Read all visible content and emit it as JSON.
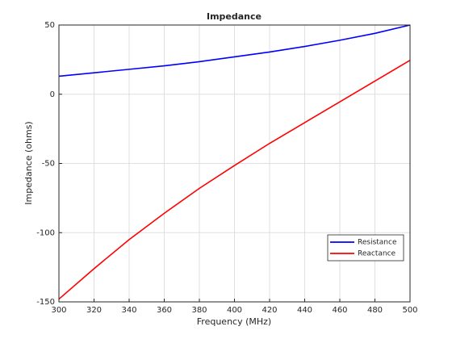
{
  "chart_data": {
    "type": "line",
    "title": "Impedance",
    "x_label": "Frequency (MHz)",
    "y_label": "Impedance (ohms)",
    "x": [
      300,
      320,
      340,
      360,
      380,
      400,
      420,
      440,
      460,
      480,
      500
    ],
    "series": [
      {
        "name": "Resistance",
        "color": "#0000ff",
        "values": [
          13,
          15.5,
          18,
          20.5,
          23.5,
          27,
          30.5,
          34.5,
          39,
          44,
          50
        ]
      },
      {
        "name": "Reactance",
        "color": "#ff0000",
        "values": [
          -148,
          -126,
          -105,
          -86,
          -68,
          -51.5,
          -35.5,
          -20.5,
          -5.5,
          9.5,
          24.5
        ]
      }
    ],
    "xlim": [
      300,
      500
    ],
    "xticks": [
      300,
      320,
      340,
      360,
      380,
      400,
      420,
      440,
      460,
      480,
      500
    ],
    "ylim": [
      -150,
      50
    ],
    "yticks": [
      -150,
      -100,
      -50,
      0,
      50
    ],
    "grid": true,
    "legend": "lower-right"
  }
}
